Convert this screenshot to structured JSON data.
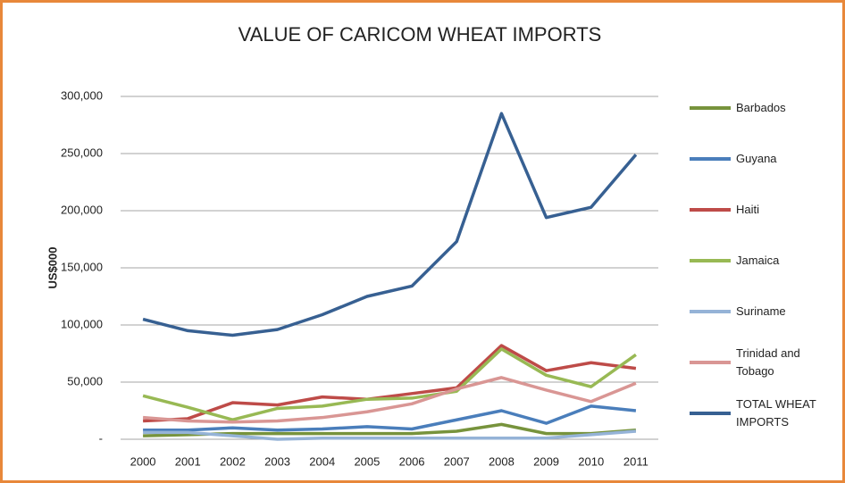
{
  "chart_data": {
    "type": "line",
    "title": "VALUE OF CARICOM WHEAT IMPORTS",
    "y_label": "US$000",
    "categories": [
      "2000",
      "2001",
      "2002",
      "2003",
      "2004",
      "2005",
      "2006",
      "2007",
      "2008",
      "2009",
      "2010",
      "2011"
    ],
    "series": [
      {
        "name": "Barbados",
        "color": "#77933c",
        "values": [
          3000,
          4000,
          5000,
          5000,
          5000,
          5000,
          5000,
          7000,
          13000,
          5000,
          5000,
          8000
        ]
      },
      {
        "name": "Guyana",
        "color": "#4a7ebb",
        "values": [
          8000,
          8000,
          10000,
          8000,
          9000,
          11000,
          9000,
          17000,
          25000,
          14000,
          29000,
          25000
        ]
      },
      {
        "name": "Haiti",
        "color": "#be4b48",
        "values": [
          16000,
          18000,
          32000,
          30000,
          37000,
          35000,
          40000,
          45000,
          82000,
          60000,
          67000,
          62000
        ]
      },
      {
        "name": "Jamaica",
        "color": "#98b954",
        "values": [
          38000,
          28000,
          17000,
          27000,
          29000,
          35000,
          36000,
          42000,
          79000,
          56000,
          46000,
          74000
        ]
      },
      {
        "name": "Suriname",
        "color": "#95b3d7",
        "values": [
          6000,
          6000,
          3000,
          0,
          1000,
          1000,
          1000,
          1000,
          1000,
          1000,
          4000,
          7000
        ]
      },
      {
        "name": "Trinidad and Tobago",
        "color": "#d99694",
        "values": [
          19000,
          16000,
          15000,
          16000,
          19000,
          24000,
          31000,
          44000,
          54000,
          43000,
          33000,
          49000
        ]
      },
      {
        "name": "TOTAL WHEAT IMPORTS",
        "color": "#376092",
        "values": [
          105000,
          95000,
          91000,
          96000,
          109000,
          125000,
          134000,
          173000,
          285000,
          194000,
          203000,
          249000
        ]
      }
    ],
    "ylim": [
      0,
      300000
    ],
    "yticks": [
      {
        "value": 0,
        "label": "-"
      },
      {
        "value": 50000,
        "label": "50,000"
      },
      {
        "value": 100000,
        "label": "100,000"
      },
      {
        "value": 150000,
        "label": "150,000"
      },
      {
        "value": 200000,
        "label": "200,000"
      },
      {
        "value": 250000,
        "label": "250,000"
      },
      {
        "value": 300000,
        "label": "300,000"
      }
    ],
    "grid": true,
    "legend": "right"
  }
}
